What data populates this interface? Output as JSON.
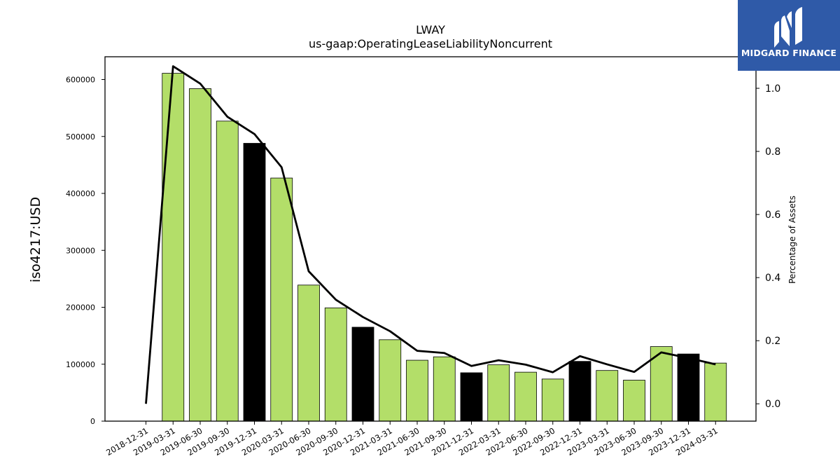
{
  "chart_data": {
    "type": "bar",
    "title": "LWAY",
    "subtitle": "us-gaap:OperatingLeaseLiabilityNoncurrent",
    "ylabel": "iso4217:USD",
    "y2label": "Percentage of Assets",
    "ylim": [
      0,
      640000
    ],
    "y2lim": [
      -0.055,
      1.1
    ],
    "yticks": [
      0,
      100000,
      200000,
      300000,
      400000,
      500000,
      600000
    ],
    "yticklabels": [
      "0",
      "100000",
      "200000",
      "300000",
      "400000",
      "500000",
      "600000"
    ],
    "y2ticks": [
      0.0,
      0.2,
      0.4,
      0.6,
      0.8,
      1.0
    ],
    "y2ticklabels": [
      "0.0",
      "0.2",
      "0.4",
      "0.6",
      "0.8",
      "1.0"
    ],
    "categories": [
      "2018-12-31",
      "2019-03-31",
      "2019-06-30",
      "2019-09-30",
      "2019-12-31",
      "2020-03-31",
      "2020-06-30",
      "2020-09-30",
      "2020-12-31",
      "2021-03-31",
      "2021-06-30",
      "2021-09-30",
      "2021-12-31",
      "2022-03-31",
      "2022-06-30",
      "2022-09-30",
      "2022-12-31",
      "2023-03-31",
      "2023-06-30",
      "2023-09-30",
      "2023-12-31",
      "2024-03-31"
    ],
    "series": [
      {
        "type": "bar",
        "axis": "left",
        "values": [
          0,
          611000,
          584000,
          527000,
          488000,
          427000,
          239000,
          199000,
          165000,
          143000,
          107000,
          113000,
          85000,
          99000,
          86000,
          74000,
          105000,
          89000,
          72000,
          131000,
          118000,
          102000
        ],
        "colors": [
          "#b3de69",
          "#b3de69",
          "#b3de69",
          "#b3de69",
          "#000000",
          "#b3de69",
          "#b3de69",
          "#b3de69",
          "#000000",
          "#b3de69",
          "#b3de69",
          "#b3de69",
          "#000000",
          "#b3de69",
          "#b3de69",
          "#b3de69",
          "#000000",
          "#b3de69",
          "#b3de69",
          "#b3de69",
          "#000000",
          "#b3de69"
        ]
      },
      {
        "type": "line",
        "axis": "right",
        "color": "#000000",
        "values": [
          0.0,
          1.07,
          1.015,
          0.91,
          0.855,
          0.75,
          0.42,
          0.33,
          0.275,
          0.23,
          0.168,
          0.161,
          0.12,
          0.138,
          0.124,
          0.1,
          0.151,
          0.125,
          0.101,
          0.163,
          0.145,
          0.125
        ]
      }
    ],
    "legend": "none",
    "grid": false
  },
  "logo": {
    "text": "MIDGARD FINANCE",
    "icon": "midgard-finance-logo-icon",
    "color": "#2f5aa8"
  }
}
